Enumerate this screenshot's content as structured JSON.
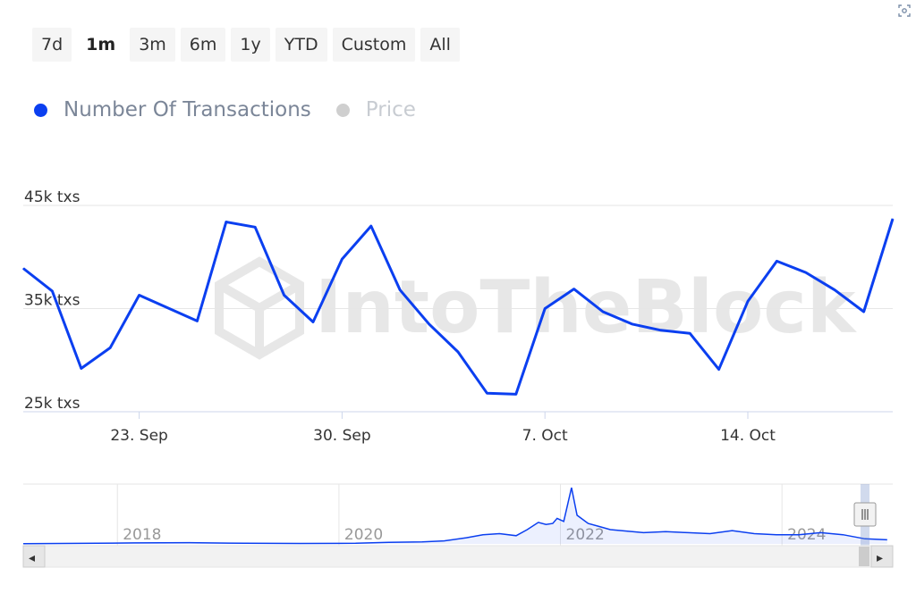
{
  "range_selector": {
    "buttons": [
      "7d",
      "1m",
      "3m",
      "6m",
      "1y",
      "YTD",
      "Custom",
      "All"
    ],
    "active": "1m"
  },
  "legend": [
    {
      "label": "Number Of Transactions",
      "color": "#0b3ff0",
      "active": true
    },
    {
      "label": "Price",
      "color": "#cfcfcf",
      "active": false
    }
  ],
  "watermark": "IntoTheBlock",
  "chart_data": [
    {
      "type": "line",
      "series": [
        {
          "name": "Number Of Transactions",
          "color": "#0b3ff0",
          "x": [
            "2023-09-19",
            "2023-09-20",
            "2023-09-21",
            "2023-09-22",
            "2023-09-23",
            "2023-09-25",
            "2023-09-26",
            "2023-09-27",
            "2023-09-28",
            "2023-09-29",
            "2023-09-30",
            "2023-10-01",
            "2023-10-02",
            "2023-10-03",
            "2023-10-04",
            "2023-10-05",
            "2023-10-06",
            "2023-10-07",
            "2023-10-08",
            "2023-10-09",
            "2023-10-10",
            "2023-10-11",
            "2023-10-12",
            "2023-10-13",
            "2023-10-14",
            "2023-10-15",
            "2023-10-16",
            "2023-10-17",
            "2023-10-18",
            "2023-10-19"
          ],
          "values": [
            38900,
            36700,
            29200,
            31200,
            36300,
            33800,
            43400,
            42900,
            36300,
            33700,
            39800,
            43000,
            36800,
            33500,
            30800,
            26800,
            26700,
            35000,
            36900,
            34700,
            33500,
            32900,
            32600,
            29100,
            35700,
            39600,
            38500,
            36800,
            34700,
            43700
          ]
        }
      ],
      "y_ticks": [
        "25k txs",
        "35k txs",
        "45k txs"
      ],
      "x_ticks": [
        "23. Sep",
        "30. Sep",
        "7. Oct",
        "14. Oct"
      ],
      "ylim": [
        25000,
        45000
      ],
      "grid": true
    },
    {
      "type": "area",
      "title": "navigator",
      "x": [
        2017.0,
        2017.5,
        2018.0,
        2018.5,
        2019.0,
        2019.5,
        2020.0,
        2020.3,
        2020.6,
        2020.8,
        2021.0,
        2021.15,
        2021.3,
        2021.45,
        2021.55,
        2021.65,
        2021.72,
        2021.78,
        2021.82,
        2021.88,
        2021.95,
        2022.0,
        2022.1,
        2022.2,
        2022.3,
        2022.4,
        2022.6,
        2022.8,
        2023.0,
        2023.2,
        2023.4,
        2023.6,
        2023.8,
        2024.0,
        2024.2,
        2024.4,
        2024.6,
        2024.8
      ],
      "values": [
        0.2,
        0.5,
        1,
        1.2,
        0.6,
        0.4,
        0.6,
        1.5,
        2.0,
        3,
        6,
        9,
        10,
        8,
        14,
        21,
        19,
        20,
        25,
        22,
        55,
        28,
        20,
        17,
        14,
        13,
        11,
        12,
        11,
        10,
        13,
        10,
        9,
        9,
        11,
        9,
        5,
        4
      ],
      "x_ticks": [
        "2018",
        "2020",
        "2022",
        "2024"
      ]
    }
  ],
  "scrollbar": {
    "left_arrow": "◂",
    "right_arrow": "▸"
  }
}
